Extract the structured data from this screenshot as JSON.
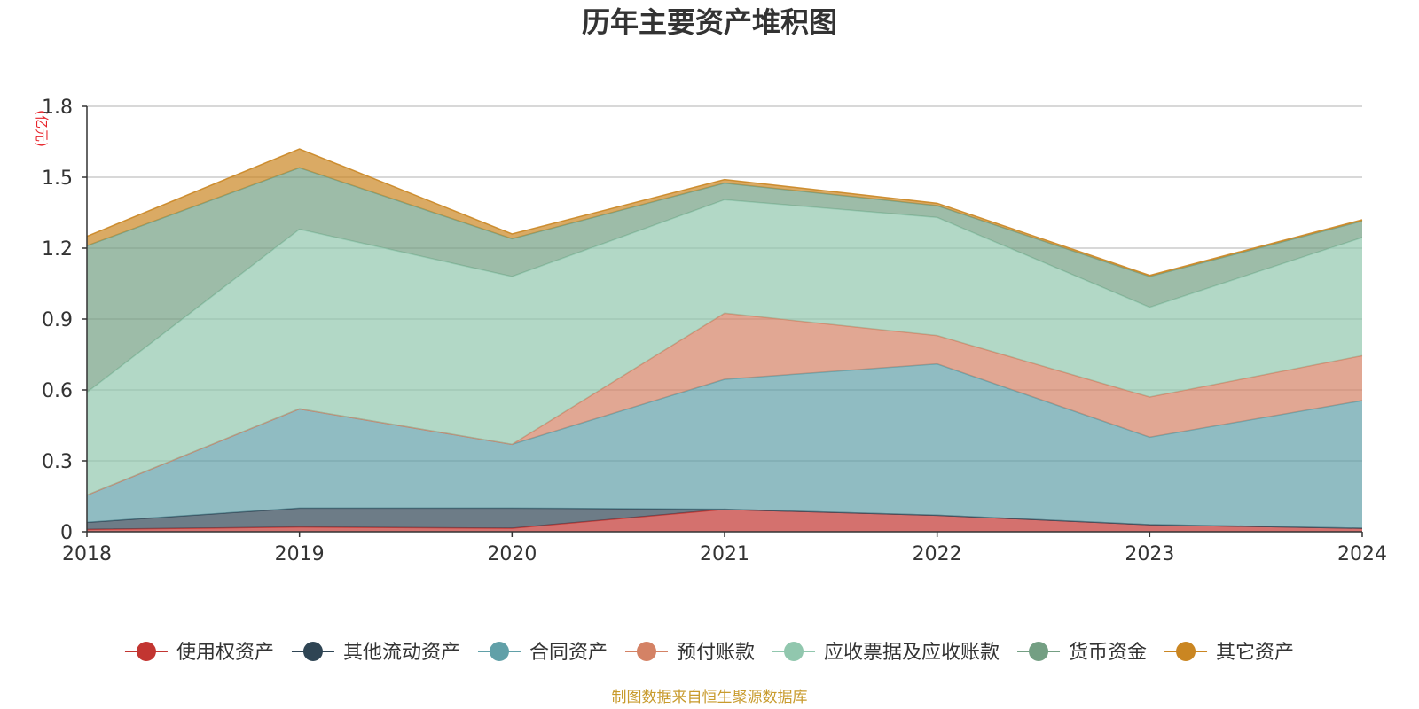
{
  "chart_data": {
    "type": "area",
    "stacked": true,
    "title": "历年主要资产堆积图",
    "unit_label": "(亿元)",
    "source": "制图数据来自恒生聚源数据库",
    "x": [
      "2018",
      "2019",
      "2020",
      "2021",
      "2022",
      "2023",
      "2024"
    ],
    "ylim": [
      0,
      1.8
    ],
    "yticks": [
      "0",
      "0.3",
      "0.6",
      "0.9",
      "1.2",
      "1.5",
      "1.8"
    ],
    "grid": true,
    "legend_position": "bottom",
    "series": [
      {
        "name": "使用权资产",
        "color": "#c23531",
        "values": [
          0.01,
          0.02,
          0.015,
          0.095,
          0.07,
          0.03,
          0.015
        ]
      },
      {
        "name": "其他流动资产",
        "color": "#2f4554",
        "values": [
          0.03,
          0.08,
          0.085,
          0.0,
          0.0,
          0.0,
          0.0
        ]
      },
      {
        "name": "合同资产",
        "color": "#61a0a8",
        "values": [
          0.115,
          0.42,
          0.27,
          0.55,
          0.64,
          0.37,
          0.54
        ]
      },
      {
        "name": "预付账款",
        "color": "#d48265",
        "values": [
          0.0,
          0.0,
          0.0,
          0.28,
          0.12,
          0.17,
          0.19
        ]
      },
      {
        "name": "应收票据及应收账款",
        "color": "#91c7ae",
        "values": [
          0.435,
          0.76,
          0.71,
          0.48,
          0.5,
          0.38,
          0.5
        ]
      },
      {
        "name": "货币资金",
        "color": "#749f83",
        "values": [
          0.62,
          0.26,
          0.16,
          0.07,
          0.05,
          0.13,
          0.07
        ]
      },
      {
        "name": "其它资产",
        "color": "#ca8622",
        "values": [
          0.04,
          0.08,
          0.02,
          0.015,
          0.01,
          0.005,
          0.005
        ]
      }
    ]
  }
}
